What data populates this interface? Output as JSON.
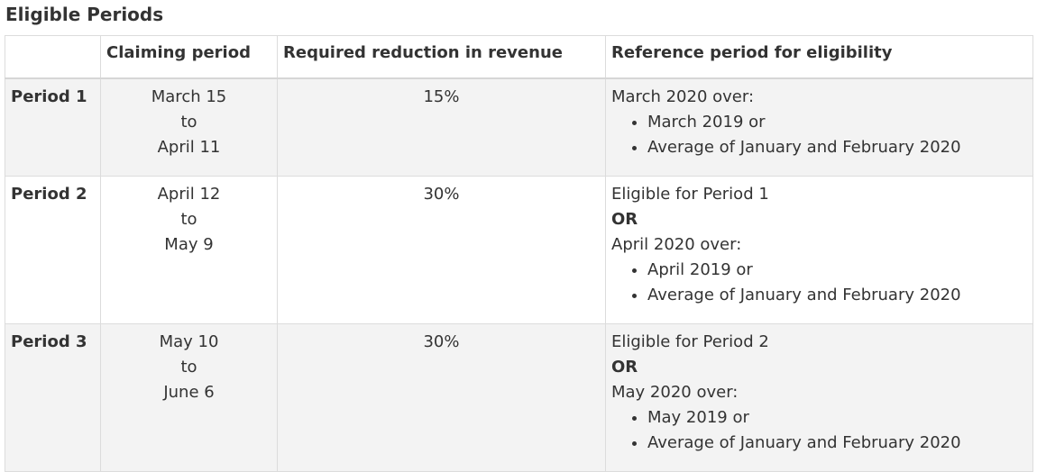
{
  "caption": "Eligible Periods",
  "headers": [
    "",
    "Claiming period",
    "Required reduction in revenue",
    "Reference period for eligibility"
  ],
  "rows": [
    {
      "label": "Period 1",
      "claim": [
        "March 15",
        "to",
        "April 11"
      ],
      "reduction": "15%",
      "ref_pre": [],
      "ref_or": "",
      "ref_intro": "March 2020 over:",
      "ref_items": [
        "March 2019 or",
        "Average of January and February 2020"
      ]
    },
    {
      "label": "Period 2",
      "claim": [
        "April 12",
        "to",
        "May 9"
      ],
      "reduction": "30%",
      "ref_pre": [
        "Eligible for Period 1"
      ],
      "ref_or": "OR",
      "ref_intro": "April 2020 over:",
      "ref_items": [
        "April 2019 or",
        "Average of January and February 2020"
      ]
    },
    {
      "label": "Period 3",
      "claim": [
        "May 10",
        "to",
        "June 6"
      ],
      "reduction": "30%",
      "ref_pre": [
        "Eligible for Period 2"
      ],
      "ref_or": "OR",
      "ref_intro": "May 2020 over:",
      "ref_items": [
        "May 2019 or",
        "Average of January and February 2020"
      ]
    }
  ]
}
